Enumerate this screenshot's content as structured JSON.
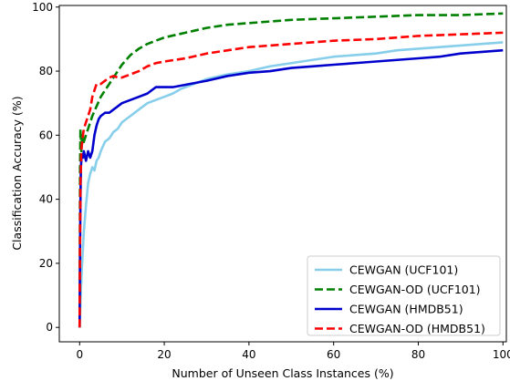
{
  "chart_data": {
    "type": "line",
    "title": "",
    "xlabel": "Number of Unseen Class Instances (%)",
    "ylabel": "Classification Accuracy (%)",
    "xlim": [
      -4.8,
      100.8
    ],
    "ylim": [
      -4.5,
      100.5
    ],
    "xticks": [
      0,
      20,
      40,
      60,
      80,
      100
    ],
    "yticks": [
      0,
      20,
      40,
      60,
      80,
      100
    ],
    "grid": false,
    "legend_position": "lower-right",
    "series": [
      {
        "name": "CEWGAN (UCF101)",
        "color": "#87ceeb",
        "dash": "solid",
        "points": [
          [
            0,
            0
          ],
          [
            0.2,
            8
          ],
          [
            0.5,
            18
          ],
          [
            0.8,
            25
          ],
          [
            1,
            30
          ],
          [
            1.5,
            38
          ],
          [
            2,
            45
          ],
          [
            2.5,
            48
          ],
          [
            3,
            50
          ],
          [
            3.5,
            49
          ],
          [
            4,
            52
          ],
          [
            4.5,
            53
          ],
          [
            5,
            55
          ],
          [
            6,
            58
          ],
          [
            7,
            59
          ],
          [
            8,
            61
          ],
          [
            9,
            62
          ],
          [
            10,
            64
          ],
          [
            12,
            66
          ],
          [
            14,
            68
          ],
          [
            16,
            70
          ],
          [
            18,
            71
          ],
          [
            20,
            72
          ],
          [
            22,
            73
          ],
          [
            24,
            74.5
          ],
          [
            26,
            75.5
          ],
          [
            28,
            76.5
          ],
          [
            30,
            77.5
          ],
          [
            35,
            79
          ],
          [
            40,
            80
          ],
          [
            45,
            81.5
          ],
          [
            50,
            82.5
          ],
          [
            55,
            83.5
          ],
          [
            60,
            84.5
          ],
          [
            65,
            85
          ],
          [
            70,
            85.5
          ],
          [
            75,
            86.5
          ],
          [
            80,
            87
          ],
          [
            85,
            87.5
          ],
          [
            90,
            88
          ],
          [
            95,
            88.5
          ],
          [
            100,
            89
          ]
        ]
      },
      {
        "name": "CEWGAN-OD (UCF101)",
        "color": "#008000",
        "dash": "dashed",
        "points": [
          [
            0,
            0
          ],
          [
            0.1,
            50
          ],
          [
            0.2,
            62
          ],
          [
            0.4,
            55
          ],
          [
            0.6,
            60
          ],
          [
            0.8,
            57
          ],
          [
            1,
            58
          ],
          [
            1.5,
            60
          ],
          [
            2,
            62
          ],
          [
            2.5,
            64
          ],
          [
            3,
            66
          ],
          [
            4,
            69
          ],
          [
            5,
            72
          ],
          [
            6,
            74
          ],
          [
            7,
            76
          ],
          [
            8,
            78
          ],
          [
            9,
            80
          ],
          [
            10,
            82
          ],
          [
            12,
            85
          ],
          [
            14,
            87
          ],
          [
            16,
            88.5
          ],
          [
            18,
            89.5
          ],
          [
            20,
            90.5
          ],
          [
            25,
            92
          ],
          [
            30,
            93.5
          ],
          [
            35,
            94.5
          ],
          [
            40,
            95
          ],
          [
            50,
            96
          ],
          [
            60,
            96.5
          ],
          [
            70,
            97
          ],
          [
            80,
            97.5
          ],
          [
            90,
            97.5
          ],
          [
            100,
            98
          ]
        ]
      },
      {
        "name": "CEWGAN (HMDB51)",
        "color": "#0000cd",
        "dash": "solid",
        "points": [
          [
            0,
            0
          ],
          [
            0.1,
            25
          ],
          [
            0.2,
            40
          ],
          [
            0.3,
            50
          ],
          [
            0.5,
            54
          ],
          [
            0.8,
            53
          ],
          [
            1,
            55
          ],
          [
            1.5,
            52
          ],
          [
            2,
            55
          ],
          [
            2.5,
            53
          ],
          [
            3,
            55
          ],
          [
            3.5,
            60
          ],
          [
            4,
            63
          ],
          [
            4.5,
            65
          ],
          [
            5,
            66
          ],
          [
            6,
            67
          ],
          [
            7,
            67
          ],
          [
            8,
            68
          ],
          [
            9,
            69
          ],
          [
            10,
            70
          ],
          [
            12,
            71
          ],
          [
            14,
            72
          ],
          [
            16,
            73
          ],
          [
            18,
            75
          ],
          [
            20,
            75
          ],
          [
            22,
            75
          ],
          [
            24,
            75.5
          ],
          [
            26,
            76
          ],
          [
            28,
            76.5
          ],
          [
            30,
            77
          ],
          [
            35,
            78.5
          ],
          [
            40,
            79.5
          ],
          [
            45,
            80
          ],
          [
            50,
            81
          ],
          [
            55,
            81.5
          ],
          [
            60,
            82
          ],
          [
            65,
            82.5
          ],
          [
            70,
            83
          ],
          [
            75,
            83.5
          ],
          [
            80,
            84
          ],
          [
            85,
            84.5
          ],
          [
            90,
            85.5
          ],
          [
            95,
            86
          ],
          [
            100,
            86.5
          ]
        ]
      },
      {
        "name": "CEWGAN-OD (HMDB51)",
        "color": "#ff0000",
        "dash": "dashed",
        "points": [
          [
            0,
            0
          ],
          [
            0.1,
            30
          ],
          [
            0.2,
            45
          ],
          [
            0.4,
            55
          ],
          [
            0.6,
            58
          ],
          [
            0.8,
            60
          ],
          [
            1,
            62
          ],
          [
            1.5,
            64
          ],
          [
            2,
            66
          ],
          [
            2.5,
            68
          ],
          [
            3,
            72
          ],
          [
            3.5,
            74
          ],
          [
            4,
            76
          ],
          [
            5,
            76
          ],
          [
            6,
            77
          ],
          [
            7,
            78
          ],
          [
            8,
            78.5
          ],
          [
            9,
            78
          ],
          [
            10,
            78
          ],
          [
            12,
            79
          ],
          [
            14,
            80
          ],
          [
            16,
            81.5
          ],
          [
            18,
            82.5
          ],
          [
            20,
            83
          ],
          [
            25,
            84
          ],
          [
            30,
            85.5
          ],
          [
            35,
            86.5
          ],
          [
            40,
            87.5
          ],
          [
            50,
            88.5
          ],
          [
            60,
            89.5
          ],
          [
            70,
            90
          ],
          [
            80,
            91
          ],
          [
            90,
            91.5
          ],
          [
            100,
            92
          ]
        ]
      }
    ]
  }
}
